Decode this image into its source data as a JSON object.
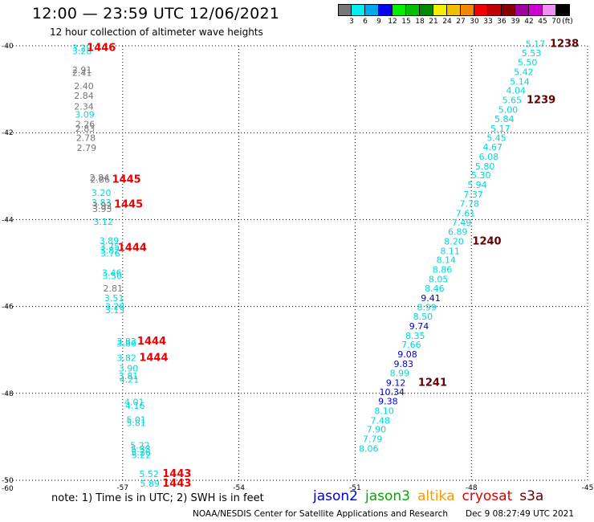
{
  "header": {
    "title": "12:00 — 23:59 UTC 12/06/2021",
    "subtitle": "12 hour collection of altimeter wave heights"
  },
  "colorbar": {
    "colors": [
      "#777777",
      "#00f0f0",
      "#00a8f0",
      "#0000f0",
      "#00f000",
      "#00c000",
      "#008800",
      "#f0f000",
      "#f0c000",
      "#f08800",
      "#f00000",
      "#c00000",
      "#880000",
      "#a000a0",
      "#d000d0",
      "#f090f0",
      "#000000"
    ],
    "ticks": [
      "3",
      "6",
      "9",
      "12",
      "15",
      "18",
      "21",
      "24",
      "27",
      "30",
      "33",
      "36",
      "39",
      "42",
      "45",
      "70"
    ],
    "unit": "(ft)"
  },
  "note": "note: 1) Time is in UTC; 2) SWH is in feet",
  "legend": [
    {
      "label": "jason2",
      "color": "#0000cc"
    },
    {
      "label": "jason3",
      "color": "#00aa00"
    },
    {
      "label": "altika",
      "color": "#ff9900"
    },
    {
      "label": "cryosat",
      "color": "#dd0000"
    },
    {
      "label": "s3a",
      "color": "#660000"
    }
  ],
  "footer": {
    "source": "NOAA/NESDIS Center for Satellite Applications and Research",
    "timestamp": "Dec  9 08:27:49 UTC 2021"
  },
  "chart_data": {
    "type": "scatter",
    "xlim": [
      -60,
      -45
    ],
    "ylim": [
      -50,
      -40
    ],
    "x_ticks": [
      "-57",
      "-54",
      "-51",
      "-48",
      "-45"
    ],
    "y_ticks": [
      "-40",
      "-42",
      "-44",
      "-46",
      "-48",
      "-50"
    ],
    "corner_label": "-60",
    "grid": true,
    "series": [
      {
        "points": [
          {
            "x": -58.05,
            "y": -40.05,
            "label": "3.29",
            "color": "#00d8d8"
          },
          {
            "x": -58.05,
            "y": -40.12,
            "label": "3.28",
            "color": "#00d8d8"
          },
          {
            "x": -58.05,
            "y": -40.55,
            "label": "2.91",
            "color": "#777777"
          },
          {
            "x": -58.05,
            "y": -40.62,
            "label": "2.41",
            "color": "#777777"
          },
          {
            "x": -58.0,
            "y": -40.92,
            "label": "2.40",
            "color": "#777777"
          },
          {
            "x": -58.0,
            "y": -41.15,
            "label": "2.84",
            "color": "#777777"
          },
          {
            "x": -58.0,
            "y": -41.4,
            "label": "2.34",
            "color": "#777777"
          },
          {
            "x": -57.98,
            "y": -41.58,
            "label": "3.09",
            "color": "#00d8d8"
          },
          {
            "x": -57.97,
            "y": -41.8,
            "label": "2.26",
            "color": "#777777"
          },
          {
            "x": -57.97,
            "y": -41.9,
            "label": "2.83",
            "color": "#777777"
          },
          {
            "x": -57.95,
            "y": -42.12,
            "label": "2.78",
            "color": "#777777"
          },
          {
            "x": -57.93,
            "y": -42.35,
            "label": "2.79",
            "color": "#777777"
          },
          {
            "x": -57.6,
            "y": -43.03,
            "label": "2.84",
            "color": "#777777"
          },
          {
            "x": -57.58,
            "y": -43.08,
            "label": "2.86",
            "color": "#777777"
          },
          {
            "x": -57.55,
            "y": -43.38,
            "label": "3.20",
            "color": "#00d8d8"
          },
          {
            "x": -57.55,
            "y": -43.6,
            "label": "3.83",
            "color": "#00d8d8"
          },
          {
            "x": -57.53,
            "y": -43.68,
            "label": "3.92",
            "color": "#777777"
          },
          {
            "x": -57.53,
            "y": -43.75,
            "label": "3.93",
            "color": "#777777"
          },
          {
            "x": -57.5,
            "y": -44.05,
            "label": "3.12",
            "color": "#00d8d8"
          },
          {
            "x": -57.35,
            "y": -44.48,
            "label": "3.89",
            "color": "#00d8d8"
          },
          {
            "x": -57.33,
            "y": -44.62,
            "label": "3.75",
            "color": "#00d8d8"
          },
          {
            "x": -57.33,
            "y": -44.7,
            "label": "3.82",
            "color": "#00d8d8"
          },
          {
            "x": -57.32,
            "y": -44.78,
            "label": "3.76",
            "color": "#00d8d8"
          },
          {
            "x": -57.28,
            "y": -45.22,
            "label": "3.46",
            "color": "#00d8d8"
          },
          {
            "x": -57.27,
            "y": -45.3,
            "label": "3.50",
            "color": "#00d8d8"
          },
          {
            "x": -57.25,
            "y": -45.58,
            "label": "2.81",
            "color": "#777777"
          },
          {
            "x": -57.22,
            "y": -45.8,
            "label": "3.51",
            "color": "#00d8d8"
          },
          {
            "x": -57.2,
            "y": -46.0,
            "label": "3.28",
            "color": "#00d8d8"
          },
          {
            "x": -57.2,
            "y": -46.08,
            "label": "3.13",
            "color": "#00d8d8"
          },
          {
            "x": -56.9,
            "y": -46.8,
            "label": "3.83",
            "color": "#00d8d8"
          },
          {
            "x": -56.9,
            "y": -46.85,
            "label": "3.86",
            "color": "#00d8d8"
          },
          {
            "x": -56.9,
            "y": -47.18,
            "label": "3.82",
            "color": "#00d8d8"
          },
          {
            "x": -56.85,
            "y": -47.42,
            "label": "3.90",
            "color": "#00d8d8"
          },
          {
            "x": -56.85,
            "y": -47.6,
            "label": "3.81",
            "color": "#00d8d8"
          },
          {
            "x": -56.83,
            "y": -47.68,
            "label": "4.21",
            "color": "#00d8d8"
          },
          {
            "x": -56.7,
            "y": -48.2,
            "label": "4.01",
            "color": "#00d8d8"
          },
          {
            "x": -56.68,
            "y": -48.28,
            "label": "4.16",
            "color": "#00d8d8"
          },
          {
            "x": -56.65,
            "y": -48.6,
            "label": "5.01",
            "color": "#00d8d8"
          },
          {
            "x": -56.65,
            "y": -48.68,
            "label": "5.81",
            "color": "#00d8d8"
          },
          {
            "x": -56.55,
            "y": -49.2,
            "label": "5.22",
            "color": "#00d8d8"
          },
          {
            "x": -56.53,
            "y": -49.28,
            "label": "5.33",
            "color": "#00d8d8"
          },
          {
            "x": -56.53,
            "y": -49.35,
            "label": "5.26",
            "color": "#00d8d8"
          },
          {
            "x": -56.52,
            "y": -49.42,
            "label": "5.22",
            "color": "#00d8d8"
          },
          {
            "x": -56.32,
            "y": -49.85,
            "label": "5.52",
            "color": "#00d8d8"
          },
          {
            "x": -56.3,
            "y": -50.07,
            "label": "5.89",
            "color": "#00d8d8"
          },
          {
            "x": -46.35,
            "y": -39.95,
            "label": "5.17",
            "color": "#00d8d8"
          },
          {
            "x": -46.45,
            "y": -40.17,
            "label": "5.53",
            "color": "#00d8d8"
          },
          {
            "x": -46.55,
            "y": -40.38,
            "label": "5.50",
            "color": "#00d8d8"
          },
          {
            "x": -46.65,
            "y": -40.6,
            "label": "5.42",
            "color": "#00d8d8"
          },
          {
            "x": -46.75,
            "y": -40.82,
            "label": "5.14",
            "color": "#00d8d8"
          },
          {
            "x": -46.85,
            "y": -41.03,
            "label": "4.04",
            "color": "#00d8d8"
          },
          {
            "x": -46.95,
            "y": -41.25,
            "label": "5.65",
            "color": "#00d8d8"
          },
          {
            "x": -47.05,
            "y": -41.47,
            "label": "5.00",
            "color": "#00d8d8"
          },
          {
            "x": -47.15,
            "y": -41.68,
            "label": "5.84",
            "color": "#00d8d8"
          },
          {
            "x": -47.25,
            "y": -41.9,
            "label": "5.17",
            "color": "#00d8d8"
          },
          {
            "x": -47.35,
            "y": -42.12,
            "label": "5.45",
            "color": "#00d8d8"
          },
          {
            "x": -47.45,
            "y": -42.33,
            "label": "4.67",
            "color": "#00d8d8"
          },
          {
            "x": -47.55,
            "y": -42.55,
            "label": "6.08",
            "color": "#00d8d8"
          },
          {
            "x": -47.65,
            "y": -42.77,
            "label": "5.80",
            "color": "#00d8d8"
          },
          {
            "x": -47.75,
            "y": -42.98,
            "label": "5.30",
            "color": "#00d8d8"
          },
          {
            "x": -47.85,
            "y": -43.2,
            "label": "5.94",
            "color": "#00d8d8"
          },
          {
            "x": -47.95,
            "y": -43.42,
            "label": "7.37",
            "color": "#00d8d8"
          },
          {
            "x": -48.05,
            "y": -43.63,
            "label": "7.78",
            "color": "#00d8d8"
          },
          {
            "x": -48.15,
            "y": -43.85,
            "label": "7.61",
            "color": "#00d8d8"
          },
          {
            "x": -48.25,
            "y": -44.07,
            "label": "7.49",
            "color": "#00d8d8"
          },
          {
            "x": -48.35,
            "y": -44.28,
            "label": "6.89",
            "color": "#00d8d8"
          },
          {
            "x": -48.45,
            "y": -44.5,
            "label": "8.20",
            "color": "#00d8d8"
          },
          {
            "x": -48.55,
            "y": -44.72,
            "label": "8.11",
            "color": "#00d8d8"
          },
          {
            "x": -48.65,
            "y": -44.93,
            "label": "8.14",
            "color": "#00d8d8"
          },
          {
            "x": -48.75,
            "y": -45.15,
            "label": "8.86",
            "color": "#00d8d8"
          },
          {
            "x": -48.85,
            "y": -45.37,
            "label": "8.05",
            "color": "#00d8d8"
          },
          {
            "x": -48.95,
            "y": -45.58,
            "label": "8.46",
            "color": "#00d8d8"
          },
          {
            "x": -49.05,
            "y": -45.8,
            "label": "9.41",
            "color": "#0000d0"
          },
          {
            "x": -49.15,
            "y": -46.02,
            "label": "8.99",
            "color": "#00d8d8"
          },
          {
            "x": -49.25,
            "y": -46.23,
            "label": "8.50",
            "color": "#00d8d8"
          },
          {
            "x": -49.35,
            "y": -46.45,
            "label": "9.74",
            "color": "#0000d0"
          },
          {
            "x": -49.45,
            "y": -46.67,
            "label": "8.35",
            "color": "#00d8d8"
          },
          {
            "x": -49.55,
            "y": -46.88,
            "label": "7.66",
            "color": "#00d8d8"
          },
          {
            "x": -49.65,
            "y": -47.1,
            "label": "9.08",
            "color": "#0000d0"
          },
          {
            "x": -49.75,
            "y": -47.32,
            "label": "9.83",
            "color": "#0000d0"
          },
          {
            "x": -49.85,
            "y": -47.53,
            "label": "8.99",
            "color": "#00d8d8"
          },
          {
            "x": -49.95,
            "y": -47.75,
            "label": "9.12",
            "color": "#0000d0"
          },
          {
            "x": -50.05,
            "y": -47.97,
            "label": "10.34",
            "color": "#0000d0"
          },
          {
            "x": -50.15,
            "y": -48.18,
            "label": "9.38",
            "color": "#0000d0"
          },
          {
            "x": -50.25,
            "y": -48.4,
            "label": "8.10",
            "color": "#00d8d8"
          },
          {
            "x": -50.35,
            "y": -48.62,
            "label": "7.48",
            "color": "#00d8d8"
          },
          {
            "x": -50.45,
            "y": -48.83,
            "label": "7.90",
            "color": "#00d8d8"
          },
          {
            "x": -50.55,
            "y": -49.05,
            "label": "7.79",
            "color": "#00d8d8"
          },
          {
            "x": -50.65,
            "y": -49.27,
            "label": "8.06",
            "color": "#00d8d8"
          }
        ]
      }
    ],
    "time_labels": [
      {
        "x": -57.55,
        "y": -40.05,
        "label": "1446",
        "color": "#ee0000"
      },
      {
        "x": -56.9,
        "y": -43.08,
        "label": "1445",
        "color": "#ee0000"
      },
      {
        "x": -56.85,
        "y": -43.65,
        "label": "1445",
        "color": "#ee0000"
      },
      {
        "x": -56.75,
        "y": -44.65,
        "label": "1444",
        "color": "#ee0000"
      },
      {
        "x": -56.25,
        "y": -46.8,
        "label": "1444",
        "color": "#ee0000"
      },
      {
        "x": -56.2,
        "y": -47.18,
        "label": "1444",
        "color": "#ee0000"
      },
      {
        "x": -55.6,
        "y": -49.85,
        "label": "1443",
        "color": "#ee0000"
      },
      {
        "x": -55.6,
        "y": -50.07,
        "label": "1443",
        "color": "#ee0000"
      },
      {
        "x": -45.6,
        "y": -39.95,
        "label": "1238",
        "color": "#660000"
      },
      {
        "x": -46.2,
        "y": -41.25,
        "label": "1239",
        "color": "#660000"
      },
      {
        "x": -47.6,
        "y": -44.5,
        "label": "1240",
        "color": "#660000"
      },
      {
        "x": -49.0,
        "y": -47.75,
        "label": "1241",
        "color": "#660000"
      }
    ]
  }
}
